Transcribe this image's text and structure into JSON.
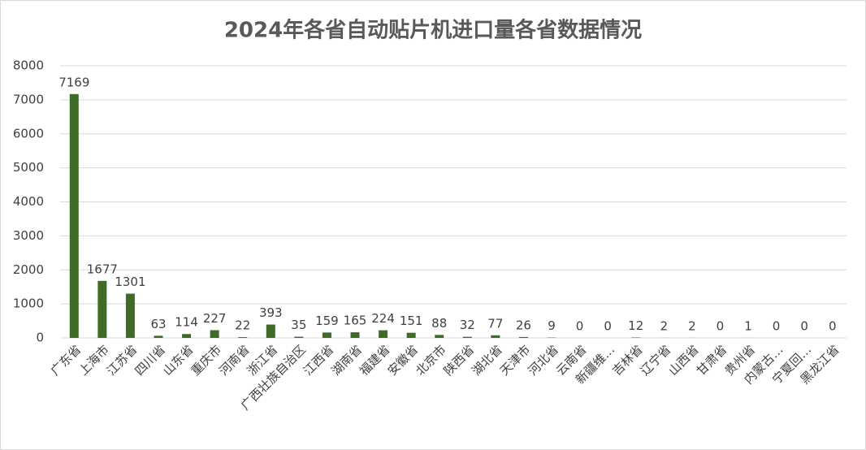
{
  "chart_data": {
    "type": "bar",
    "title": "2024年各省自动贴片机进口量各省数据情况",
    "categories": [
      "广东省",
      "上海市",
      "江苏省",
      "四川省",
      "山东省",
      "重庆市",
      "河南省",
      "浙江省",
      "广西壮族自治区",
      "江西省",
      "湖南省",
      "福建省",
      "安徽省",
      "北京市",
      "陕西省",
      "湖北省",
      "天津市",
      "河北省",
      "云南省",
      "新疆维…",
      "吉林省",
      "辽宁省",
      "山西省",
      "甘肃省",
      "贵州省",
      "内蒙古…",
      "宁夏回…",
      "黑龙江省"
    ],
    "values": [
      7169,
      1677,
      1301,
      63,
      114,
      227,
      22,
      393,
      35,
      159,
      165,
      224,
      151,
      88,
      32,
      77,
      26,
      9,
      0,
      0,
      12,
      2,
      2,
      0,
      1,
      0,
      0,
      0
    ],
    "color": "#3e6b28",
    "ylim": [
      0,
      8000
    ],
    "yticks": [
      0,
      1000,
      2000,
      3000,
      4000,
      5000,
      6000,
      7000,
      8000
    ],
    "grid": true
  }
}
